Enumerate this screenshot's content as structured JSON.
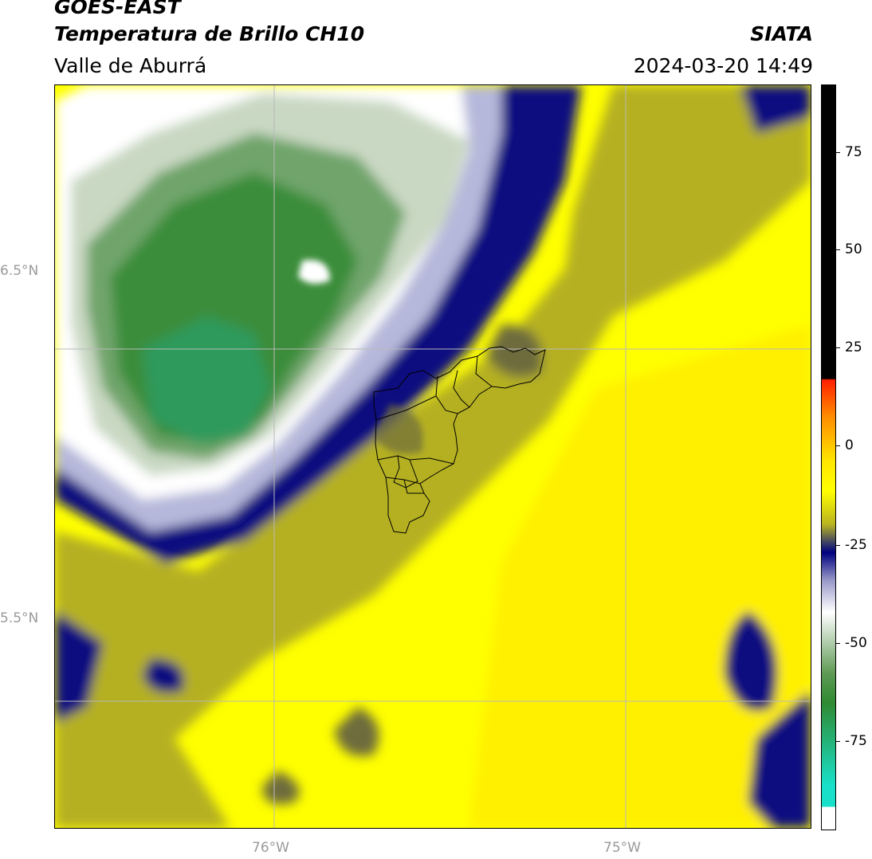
{
  "header": {
    "satellite": "GOES-EAST",
    "product": "Temperatura de Brillo CH10",
    "region": "Valle de Aburrá",
    "agency": "SIATA",
    "datetime": "2024-03-20 14:49"
  },
  "axes": {
    "lat_labels": [
      "6.5°N",
      "5.5°N"
    ],
    "lon_labels": [
      "76°W",
      "75°W"
    ]
  },
  "colorbar": {
    "ticks": [
      "75",
      "50",
      "25",
      "0",
      "-25",
      "-50",
      "-75"
    ],
    "colors": [
      "#000000",
      "#ff2000",
      "#ff8c00",
      "#ffe600",
      "#ffff00",
      "#b9b320",
      "#3a3f65",
      "#000080",
      "#9898c8",
      "#ffffff",
      "#5f9a55",
      "#2f8a32",
      "#19e0c8"
    ]
  },
  "map_colors": {
    "yellow": "#ffff00",
    "gold": "#ffe600",
    "olive": "#b5b023",
    "dark_olive": "#6e6c3c",
    "navy": "#0b1080",
    "lavender": "#b5b8da",
    "white": "#ffffff",
    "pale_green": "#c9d8c3",
    "mid_green": "#6fa46a",
    "green": "#3b8d3b",
    "teal_green": "#2f9a5b",
    "outline": "#000000",
    "grid": "#b9b9b9"
  }
}
